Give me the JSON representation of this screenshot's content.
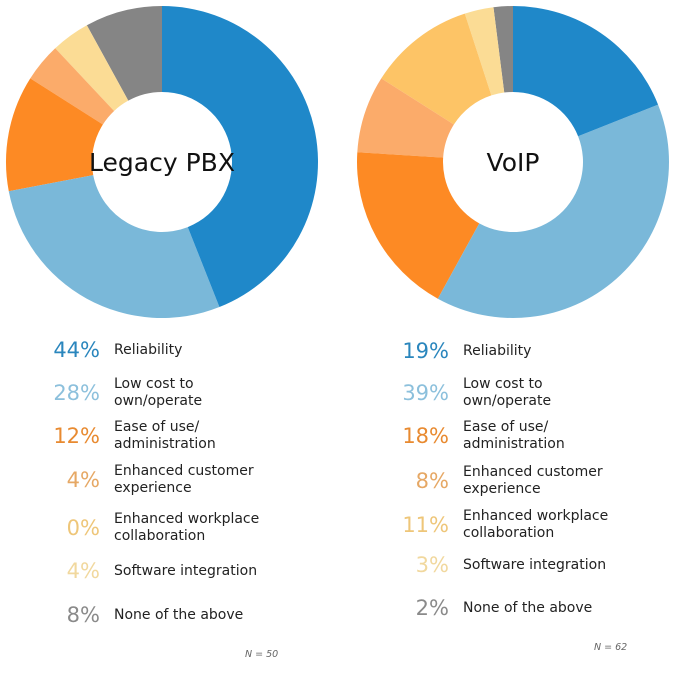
{
  "chart_data": [
    {
      "type": "pie",
      "title": "Legacy PBX",
      "categories": [
        "Reliability",
        "Low cost to own/operate",
        "Ease of use/ administration",
        "Enhanced customer experience",
        "Enhanced workplace collaboration",
        "Software integration",
        "None of the above"
      ],
      "values": [
        44,
        28,
        12,
        4,
        0,
        4,
        8
      ],
      "value_labels": [
        "44%",
        "28%",
        "12%",
        "4%",
        "0%",
        "4%",
        "8%"
      ],
      "n_label": "N = 50"
    },
    {
      "type": "pie",
      "title": "VoIP",
      "categories": [
        "Reliability",
        "Low cost to own/operate",
        "Ease of use/ administration",
        "Enhanced customer experience",
        "Enhanced workplace collaboration",
        "Software integration",
        "None of the above"
      ],
      "values": [
        19,
        39,
        18,
        8,
        11,
        3,
        2
      ],
      "value_labels": [
        "19%",
        "39%",
        "18%",
        "8%",
        "11%",
        "3%",
        "2%"
      ],
      "n_label": "N = 62"
    }
  ],
  "colors": [
    "#1f88c9",
    "#7ab8d9",
    "#fd8a24",
    "#fbab6a",
    "#fdc466",
    "#fbdc95",
    "#858585"
  ],
  "legend_text_colors": [
    "#2a86bd",
    "#8cc0dc",
    "#e88a30",
    "#e6a865",
    "#eec679",
    "#f1d89e",
    "#8a8a8a"
  ]
}
